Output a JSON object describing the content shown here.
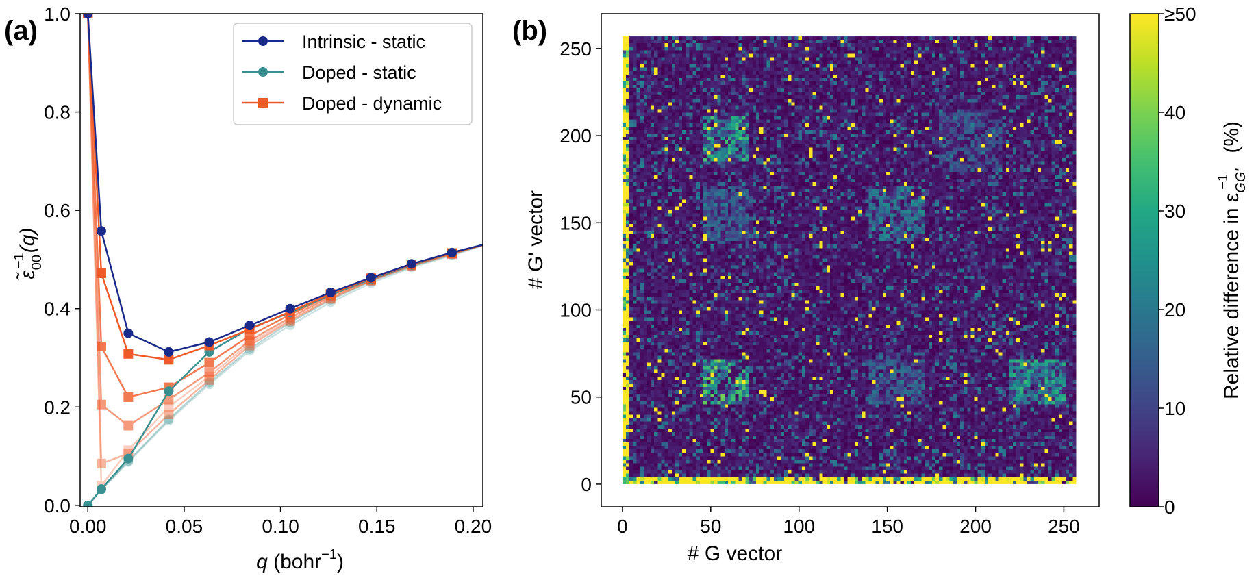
{
  "chart_data": [
    {
      "panel_label": "(a)",
      "type": "line",
      "xlabel_main": "q",
      "xlabel_unit_prefix": " (bohr",
      "xlabel_unit_exp": "−1",
      "xlabel_unit_suffix": ")",
      "ylabel_main": "ε̃",
      "ylabel_sub": "00",
      "ylabel_sup": "−1",
      "ylabel_arg": "(q)",
      "xlim": [
        -0.004,
        0.205
      ],
      "ylim": [
        -0.003,
        1.0
      ],
      "xticks": [
        0.0,
        0.05,
        0.1,
        0.15,
        0.2
      ],
      "xtick_labels": [
        "0.00",
        "0.05",
        "0.10",
        "0.15",
        "0.20"
      ],
      "yticks": [
        0.0,
        0.2,
        0.4,
        0.6,
        0.8,
        1.0
      ],
      "ytick_labels": [
        "0.0",
        "0.2",
        "0.4",
        "0.6",
        "0.8",
        "1.0"
      ],
      "legend": [
        {
          "label": "Intrinsic - static",
          "color": "#1a2a8a",
          "marker": "circle"
        },
        {
          "label": "Doped - static",
          "color": "#3a9090",
          "marker": "circle"
        },
        {
          "label": "Doped - dynamic",
          "color": "#f05a28",
          "marker": "square"
        }
      ],
      "x": [
        0.0,
        0.007,
        0.021,
        0.042,
        0.063,
        0.084,
        0.105,
        0.126,
        0.147,
        0.168,
        0.189,
        0.21
      ],
      "series": [
        {
          "name": "Doped - static (faint 1)",
          "color": "#3a9090",
          "marker": "circle",
          "opacity": 0.25,
          "values": [
            0.0,
            0.032,
            0.088,
            0.172,
            0.246,
            0.314,
            0.366,
            0.413,
            0.452,
            0.484,
            0.508,
            0.535
          ]
        },
        {
          "name": "Doped - static (faint 2)",
          "color": "#3a9090",
          "marker": "circle",
          "opacity": 0.35,
          "values": [
            0.0,
            0.032,
            0.09,
            0.175,
            0.25,
            0.318,
            0.372,
            0.418,
            0.456,
            0.486,
            0.51,
            0.535
          ]
        },
        {
          "name": "Doped - dynamic (faint 1)",
          "color": "#f05a28",
          "marker": "square",
          "opacity": 0.3,
          "values": [
            1.0,
            0.04,
            0.112,
            0.2,
            0.262,
            0.33,
            0.378,
            0.422,
            0.458,
            0.488,
            0.512,
            0.535
          ]
        },
        {
          "name": "Doped - dynamic (faint 2)",
          "color": "#f05a28",
          "marker": "square",
          "opacity": 0.45,
          "values": [
            1.0,
            0.085,
            0.105,
            0.185,
            0.255,
            0.325,
            0.375,
            0.42,
            0.457,
            0.487,
            0.511,
            0.535
          ]
        },
        {
          "name": "Doped - dynamic (mid 1)",
          "color": "#f05a28",
          "marker": "square",
          "opacity": 0.6,
          "values": [
            1.0,
            0.205,
            0.162,
            0.215,
            0.27,
            0.335,
            0.382,
            0.425,
            0.459,
            0.489,
            0.512,
            0.535
          ]
        },
        {
          "name": "Doped - dynamic (mid 2)",
          "color": "#f05a28",
          "marker": "square",
          "opacity": 0.8,
          "values": [
            1.0,
            0.323,
            0.22,
            0.24,
            0.29,
            0.345,
            0.388,
            0.428,
            0.461,
            0.49,
            0.513,
            0.535
          ]
        },
        {
          "name": "Doped - static",
          "color": "#3a9090",
          "marker": "circle",
          "opacity": 1.0,
          "values": [
            0.0,
            0.033,
            0.095,
            0.232,
            0.312,
            0.36,
            0.392,
            0.428,
            0.46,
            0.489,
            0.513,
            0.535
          ]
        },
        {
          "name": "Doped - dynamic",
          "color": "#f05a28",
          "marker": "square",
          "opacity": 1.0,
          "values": [
            1.0,
            0.472,
            0.308,
            0.296,
            0.325,
            0.358,
            0.394,
            0.43,
            0.462,
            0.49,
            0.513,
            0.535
          ]
        },
        {
          "name": "Intrinsic - static",
          "color": "#1a2a8a",
          "marker": "circle",
          "opacity": 1.0,
          "values": [
            1.0,
            0.558,
            0.35,
            0.312,
            0.332,
            0.366,
            0.4,
            0.433,
            0.463,
            0.491,
            0.514,
            0.535
          ]
        }
      ]
    },
    {
      "panel_label": "(b)",
      "type": "heatmap",
      "xlabel": "# G vector",
      "ylabel": "# G' vector",
      "xlim": [
        -12,
        270
      ],
      "ylim": [
        -13,
        270
      ],
      "grid_size": 257,
      "xticks": [
        0,
        50,
        100,
        150,
        200,
        250
      ],
      "xtick_labels": [
        "0",
        "50",
        "100",
        "150",
        "200",
        "250"
      ],
      "yticks": [
        0,
        50,
        100,
        150,
        200,
        250
      ],
      "ytick_labels": [
        "0",
        "50",
        "100",
        "150",
        "200",
        "250"
      ],
      "colormap": "viridis",
      "colorbar": {
        "label_main": "Relative difference in ε",
        "label_sub": "GG'",
        "label_sup": "−1",
        "label_unit": " (%)",
        "range": [
          0,
          50
        ],
        "ticks": [
          0,
          10,
          20,
          30,
          40,
          50
        ],
        "tick_labels": [
          "0",
          "10",
          "20",
          "30",
          "40",
          "≥50"
        ]
      },
      "blocks": [
        {
          "x": [
            45,
            70
          ],
          "y": [
            45,
            70
          ],
          "level": 30
        },
        {
          "x": [
            45,
            70
          ],
          "y": [
            185,
            210
          ],
          "level": 26
        },
        {
          "x": [
            220,
            250
          ],
          "y": [
            45,
            70
          ],
          "level": 24
        },
        {
          "x": [
            140,
            170
          ],
          "y": [
            140,
            170
          ],
          "level": 18
        },
        {
          "x": [
            45,
            70
          ],
          "y": [
            140,
            170
          ],
          "level": 14
        },
        {
          "x": [
            140,
            170
          ],
          "y": [
            45,
            70
          ],
          "level": 14
        },
        {
          "x": [
            180,
            215
          ],
          "y": [
            180,
            215
          ],
          "level": 12
        }
      ]
    }
  ]
}
